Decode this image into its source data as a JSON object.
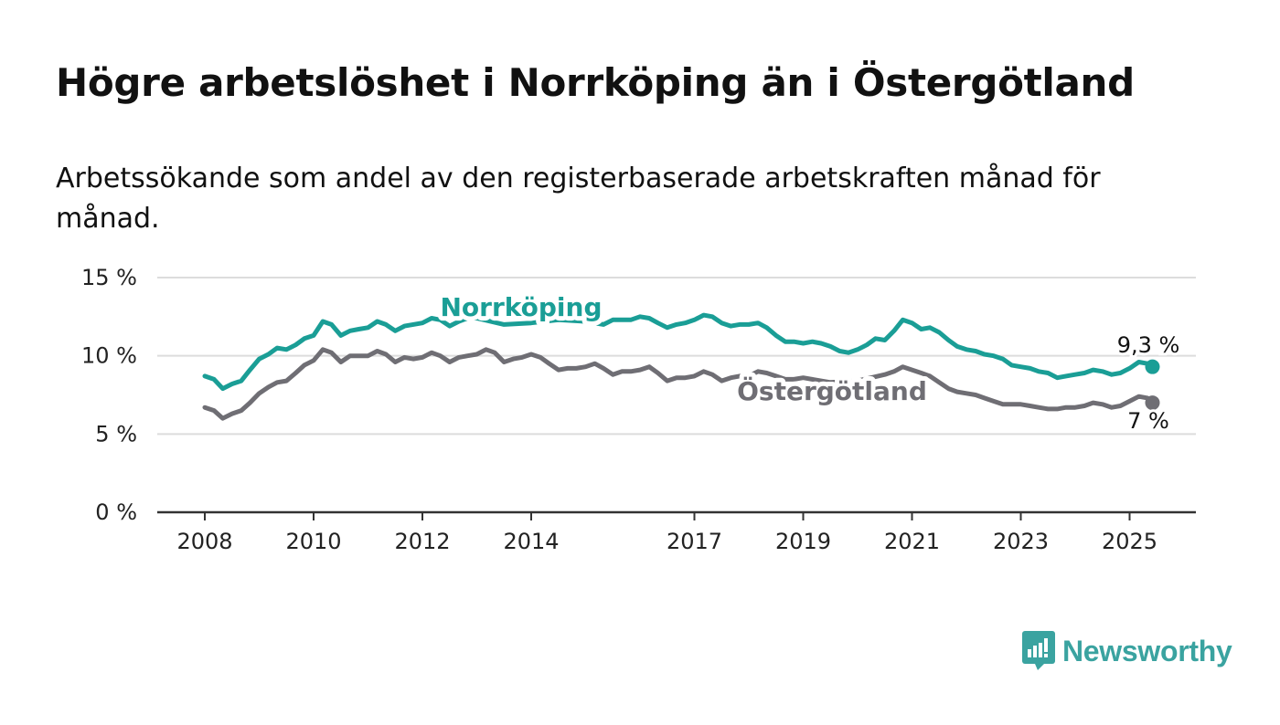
{
  "title": "Högre arbetslöshet i Norrköping än i Östergötland",
  "subtitle": "Arbetssökande som andel av den registerbaserade arbetskraften månad för månad.",
  "brand": {
    "name": "Newsworthy",
    "color": "#3aa3a0",
    "icon": "bar-chart-speech-bubble-icon"
  },
  "chart_data": {
    "type": "line",
    "ylim": [
      0,
      15
    ],
    "yticks": [
      {
        "value": 0,
        "label": "0 %"
      },
      {
        "value": 5,
        "label": "5 %"
      },
      {
        "value": 10,
        "label": "10 %"
      },
      {
        "value": 15,
        "label": "15 %"
      }
    ],
    "xticks": [
      {
        "value": 2008,
        "label": "2008"
      },
      {
        "value": 2010,
        "label": "2010"
      },
      {
        "value": 2012,
        "label": "2012"
      },
      {
        "value": 2014,
        "label": "2014"
      },
      {
        "value": 2017,
        "label": "2017"
      },
      {
        "value": 2019,
        "label": "2019"
      },
      {
        "value": 2021,
        "label": "2021"
      },
      {
        "value": 2023,
        "label": "2023"
      },
      {
        "value": 2025,
        "label": "2025"
      }
    ],
    "grid": true,
    "series": [
      {
        "name": "Norrköping",
        "color": "#1a9e96",
        "end_label": "9,3 %",
        "points": [
          [
            2008.0,
            8.7
          ],
          [
            2008.17,
            8.5
          ],
          [
            2008.33,
            7.9
          ],
          [
            2008.5,
            8.2
          ],
          [
            2008.67,
            8.4
          ],
          [
            2008.83,
            9.1
          ],
          [
            2009.0,
            9.8
          ],
          [
            2009.17,
            10.1
          ],
          [
            2009.33,
            10.5
          ],
          [
            2009.5,
            10.4
          ],
          [
            2009.67,
            10.7
          ],
          [
            2009.83,
            11.1
          ],
          [
            2010.0,
            11.3
          ],
          [
            2010.17,
            12.2
          ],
          [
            2010.33,
            12.0
          ],
          [
            2010.5,
            11.3
          ],
          [
            2010.67,
            11.6
          ],
          [
            2010.83,
            11.7
          ],
          [
            2011.0,
            11.8
          ],
          [
            2011.17,
            12.2
          ],
          [
            2011.33,
            12.0
          ],
          [
            2011.5,
            11.6
          ],
          [
            2011.67,
            11.9
          ],
          [
            2011.83,
            12.0
          ],
          [
            2012.0,
            12.1
          ],
          [
            2012.17,
            12.4
          ],
          [
            2012.33,
            12.3
          ],
          [
            2012.5,
            11.9
          ],
          [
            2012.67,
            12.2
          ],
          [
            2012.83,
            12.4
          ],
          [
            2013.0,
            12.4
          ],
          [
            2013.5,
            12.0
          ],
          [
            2014.0,
            12.1
          ],
          [
            2014.5,
            12.3
          ],
          [
            2015.0,
            12.2
          ],
          [
            2015.33,
            12.0
          ],
          [
            2015.5,
            12.3
          ],
          [
            2015.83,
            12.3
          ],
          [
            2016.0,
            12.5
          ],
          [
            2016.17,
            12.4
          ],
          [
            2016.33,
            12.1
          ],
          [
            2016.5,
            11.8
          ],
          [
            2016.67,
            12.0
          ],
          [
            2016.83,
            12.1
          ],
          [
            2017.0,
            12.3
          ],
          [
            2017.17,
            12.6
          ],
          [
            2017.33,
            12.5
          ],
          [
            2017.5,
            12.1
          ],
          [
            2017.67,
            11.9
          ],
          [
            2017.83,
            12.0
          ],
          [
            2018.0,
            12.0
          ],
          [
            2018.17,
            12.1
          ],
          [
            2018.33,
            11.8
          ],
          [
            2018.5,
            11.3
          ],
          [
            2018.67,
            10.9
          ],
          [
            2018.83,
            10.9
          ],
          [
            2019.0,
            10.8
          ],
          [
            2019.17,
            10.9
          ],
          [
            2019.33,
            10.8
          ],
          [
            2019.5,
            10.6
          ],
          [
            2019.67,
            10.3
          ],
          [
            2019.83,
            10.2
          ],
          [
            2020.0,
            10.4
          ],
          [
            2020.17,
            10.7
          ],
          [
            2020.33,
            11.1
          ],
          [
            2020.5,
            11.0
          ],
          [
            2020.67,
            11.6
          ],
          [
            2020.83,
            12.3
          ],
          [
            2021.0,
            12.1
          ],
          [
            2021.17,
            11.7
          ],
          [
            2021.33,
            11.8
          ],
          [
            2021.5,
            11.5
          ],
          [
            2021.67,
            11.0
          ],
          [
            2021.83,
            10.6
          ],
          [
            2022.0,
            10.4
          ],
          [
            2022.17,
            10.3
          ],
          [
            2022.33,
            10.1
          ],
          [
            2022.5,
            10.0
          ],
          [
            2022.67,
            9.8
          ],
          [
            2022.83,
            9.4
          ],
          [
            2023.0,
            9.3
          ],
          [
            2023.17,
            9.2
          ],
          [
            2023.33,
            9.0
          ],
          [
            2023.5,
            8.9
          ],
          [
            2023.67,
            8.6
          ],
          [
            2023.83,
            8.7
          ],
          [
            2024.0,
            8.8
          ],
          [
            2024.17,
            8.9
          ],
          [
            2024.33,
            9.1
          ],
          [
            2024.5,
            9.0
          ],
          [
            2024.67,
            8.8
          ],
          [
            2024.83,
            8.9
          ],
          [
            2025.0,
            9.2
          ],
          [
            2025.17,
            9.6
          ],
          [
            2025.33,
            9.5
          ],
          [
            2025.42,
            9.3
          ]
        ]
      },
      {
        "name": "Östergötland",
        "color": "#6f6e74",
        "end_label": "7 %",
        "points": [
          [
            2008.0,
            6.7
          ],
          [
            2008.17,
            6.5
          ],
          [
            2008.33,
            6.0
          ],
          [
            2008.5,
            6.3
          ],
          [
            2008.67,
            6.5
          ],
          [
            2008.83,
            7.0
          ],
          [
            2009.0,
            7.6
          ],
          [
            2009.17,
            8.0
          ],
          [
            2009.33,
            8.3
          ],
          [
            2009.5,
            8.4
          ],
          [
            2009.67,
            8.9
          ],
          [
            2009.83,
            9.4
          ],
          [
            2010.0,
            9.7
          ],
          [
            2010.17,
            10.4
          ],
          [
            2010.33,
            10.2
          ],
          [
            2010.5,
            9.6
          ],
          [
            2010.67,
            10.0
          ],
          [
            2010.83,
            10.0
          ],
          [
            2011.0,
            10.0
          ],
          [
            2011.17,
            10.3
          ],
          [
            2011.33,
            10.1
          ],
          [
            2011.5,
            9.6
          ],
          [
            2011.67,
            9.9
          ],
          [
            2011.83,
            9.8
          ],
          [
            2012.0,
            9.9
          ],
          [
            2012.17,
            10.2
          ],
          [
            2012.33,
            10.0
          ],
          [
            2012.5,
            9.6
          ],
          [
            2012.67,
            9.9
          ],
          [
            2012.83,
            10.0
          ],
          [
            2013.0,
            10.1
          ],
          [
            2013.17,
            10.4
          ],
          [
            2013.33,
            10.2
          ],
          [
            2013.5,
            9.6
          ],
          [
            2013.67,
            9.8
          ],
          [
            2013.83,
            9.9
          ],
          [
            2014.0,
            10.1
          ],
          [
            2014.17,
            9.9
          ],
          [
            2014.33,
            9.5
          ],
          [
            2014.5,
            9.1
          ],
          [
            2014.67,
            9.2
          ],
          [
            2014.83,
            9.2
          ],
          [
            2015.0,
            9.3
          ],
          [
            2015.17,
            9.5
          ],
          [
            2015.33,
            9.2
          ],
          [
            2015.5,
            8.8
          ],
          [
            2015.67,
            9.0
          ],
          [
            2015.83,
            9.0
          ],
          [
            2016.0,
            9.1
          ],
          [
            2016.17,
            9.3
          ],
          [
            2016.33,
            8.9
          ],
          [
            2016.5,
            8.4
          ],
          [
            2016.67,
            8.6
          ],
          [
            2016.83,
            8.6
          ],
          [
            2017.0,
            8.7
          ],
          [
            2017.17,
            9.0
          ],
          [
            2017.33,
            8.8
          ],
          [
            2017.5,
            8.4
          ],
          [
            2017.67,
            8.6
          ],
          [
            2017.83,
            8.7
          ],
          [
            2018.0,
            8.7
          ],
          [
            2018.17,
            9.0
          ],
          [
            2018.33,
            8.9
          ],
          [
            2018.5,
            8.7
          ],
          [
            2018.67,
            8.5
          ],
          [
            2018.83,
            8.5
          ],
          [
            2019.0,
            8.6
          ],
          [
            2019.5,
            8.3
          ],
          [
            2020.0,
            8.4
          ],
          [
            2020.5,
            8.8
          ],
          [
            2020.67,
            9.0
          ],
          [
            2020.83,
            9.3
          ],
          [
            2021.0,
            9.1
          ],
          [
            2021.17,
            8.9
          ],
          [
            2021.33,
            8.7
          ],
          [
            2021.5,
            8.3
          ],
          [
            2021.67,
            7.9
          ],
          [
            2021.83,
            7.7
          ],
          [
            2022.0,
            7.6
          ],
          [
            2022.17,
            7.5
          ],
          [
            2022.33,
            7.3
          ],
          [
            2022.5,
            7.1
          ],
          [
            2022.67,
            6.9
          ],
          [
            2022.83,
            6.9
          ],
          [
            2023.0,
            6.9
          ],
          [
            2023.17,
            6.8
          ],
          [
            2023.33,
            6.7
          ],
          [
            2023.5,
            6.6
          ],
          [
            2023.67,
            6.6
          ],
          [
            2023.83,
            6.7
          ],
          [
            2024.0,
            6.7
          ],
          [
            2024.17,
            6.8
          ],
          [
            2024.33,
            7.0
          ],
          [
            2024.5,
            6.9
          ],
          [
            2024.67,
            6.7
          ],
          [
            2024.83,
            6.8
          ],
          [
            2025.0,
            7.1
          ],
          [
            2025.17,
            7.4
          ],
          [
            2025.33,
            7.3
          ],
          [
            2025.42,
            7.0
          ]
        ]
      }
    ]
  }
}
